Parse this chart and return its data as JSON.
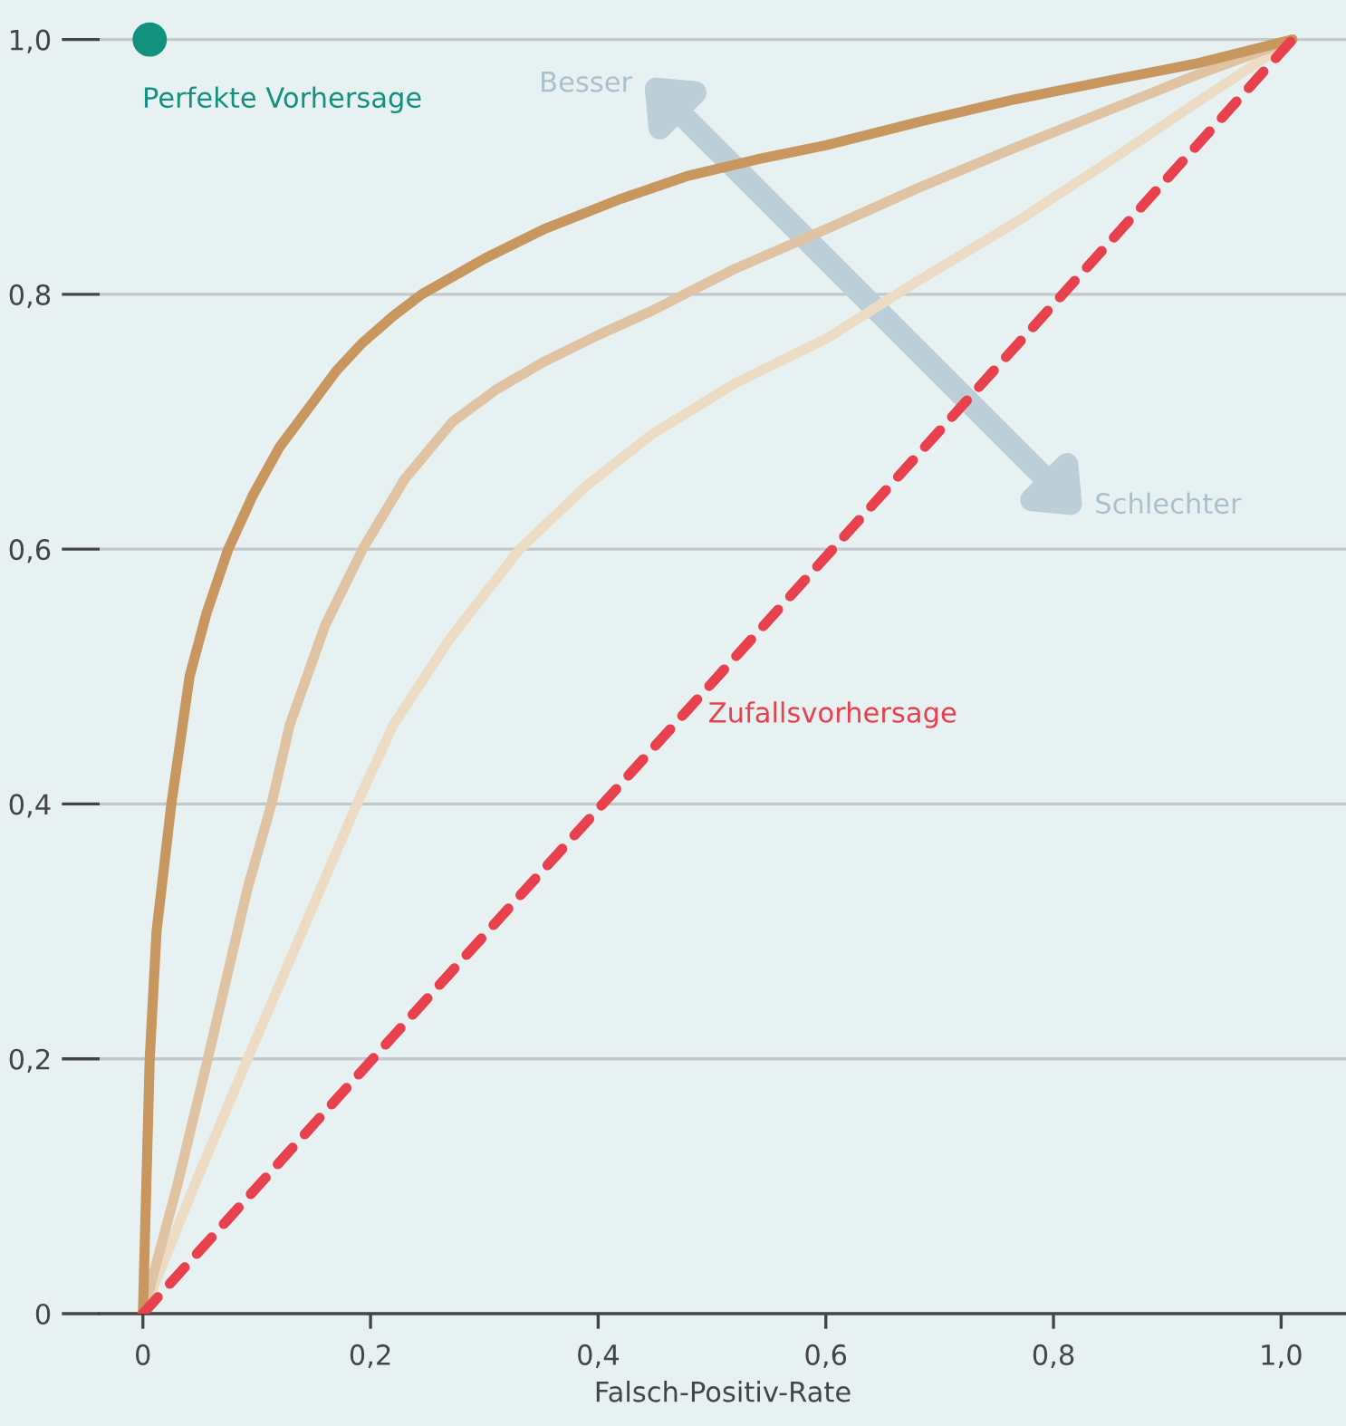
{
  "chart_data": {
    "type": "line",
    "xlabel": "Falsch-Positiv-Rate",
    "xlim": [
      -0.038,
      1.057
    ],
    "ylim": [
      0,
      1.031
    ],
    "xticks": [
      0,
      {
        "value": 0.2,
        "label": "0,2"
      },
      {
        "value": 0.4,
        "label": "0,4"
      },
      {
        "value": 0.6,
        "label": "0,6"
      },
      {
        "value": 0.8,
        "label": "0,8"
      },
      {
        "value": 1.0,
        "label": "1,0"
      }
    ],
    "yticks": [
      0,
      {
        "value": 0.2,
        "label": "0,2"
      },
      {
        "value": 0.4,
        "label": "0,4"
      },
      {
        "value": 0.6,
        "label": "0,6"
      },
      {
        "value": 0.8,
        "label": "0,8"
      },
      {
        "value": 1.0,
        "label": "1,0"
      }
    ],
    "grid": "y",
    "legend": false,
    "series": [
      {
        "color": "#ecdcc6",
        "line_style": "solid",
        "type": "line",
        "x": [
          0,
          0.045,
          0.092,
          0.14,
          0.188,
          0.22,
          0.27,
          0.331,
          0.39,
          0.447,
          0.52,
          0.6,
          0.68,
          0.766,
          0.85,
          0.925,
          1.01
        ],
        "values": [
          0,
          0.1,
          0.2,
          0.3,
          0.4,
          0.462,
          0.53,
          0.6,
          0.65,
          0.69,
          0.73,
          0.765,
          0.81,
          0.856,
          0.905,
          0.95,
          1.0
        ]
      },
      {
        "color": "#dfc3a3",
        "line_style": "solid",
        "type": "line",
        "x": [
          0,
          0.03,
          0.057,
          0.092,
          0.113,
          0.129,
          0.16,
          0.193,
          0.23,
          0.272,
          0.31,
          0.352,
          0.4,
          0.447,
          0.52,
          0.6,
          0.68,
          0.766,
          0.85,
          0.925,
          1.01
        ],
        "values": [
          0,
          0.1,
          0.2,
          0.334,
          0.4,
          0.462,
          0.54,
          0.6,
          0.655,
          0.7,
          0.725,
          0.747,
          0.768,
          0.787,
          0.82,
          0.851,
          0.883,
          0.915,
          0.945,
          0.972,
          1.0
        ]
      },
      {
        "color": "#c8965f",
        "line_style": "solid",
        "type": "line",
        "x": [
          0,
          0.003,
          0.006,
          0.012,
          0.025,
          0.041,
          0.056,
          0.075,
          0.097,
          0.12,
          0.145,
          0.17,
          0.193,
          0.22,
          0.245,
          0.3,
          0.352,
          0.42,
          0.479,
          0.54,
          0.6,
          0.68,
          0.766,
          0.85,
          0.925,
          1.01
        ],
        "values": [
          0,
          0.1,
          0.2,
          0.3,
          0.4,
          0.5,
          0.55,
          0.6,
          0.643,
          0.68,
          0.71,
          0.74,
          0.762,
          0.783,
          0.8,
          0.828,
          0.851,
          0.875,
          0.893,
          0.906,
          0.917,
          0.935,
          0.953,
          0.968,
          0.981,
          1.0
        ]
      },
      {
        "type": "line",
        "color": "#e8404d",
        "line_style": "dashed",
        "x": [
          0,
          1.01
        ],
        "values": [
          0,
          1.0
        ]
      },
      {
        "type": "scatter",
        "color": "#13907e",
        "marker": "circle",
        "x": [
          0.006
        ],
        "values": [
          1.0
        ]
      }
    ],
    "annotations": [
      {
        "text": "Perfekte Vorhersage",
        "x": 0.006,
        "y": 1.0
      },
      "Besser",
      "Schlechter",
      {
        "text": "Zufallsvorhersage",
        "x": 0.47,
        "y": 0.47
      }
    ]
  }
}
